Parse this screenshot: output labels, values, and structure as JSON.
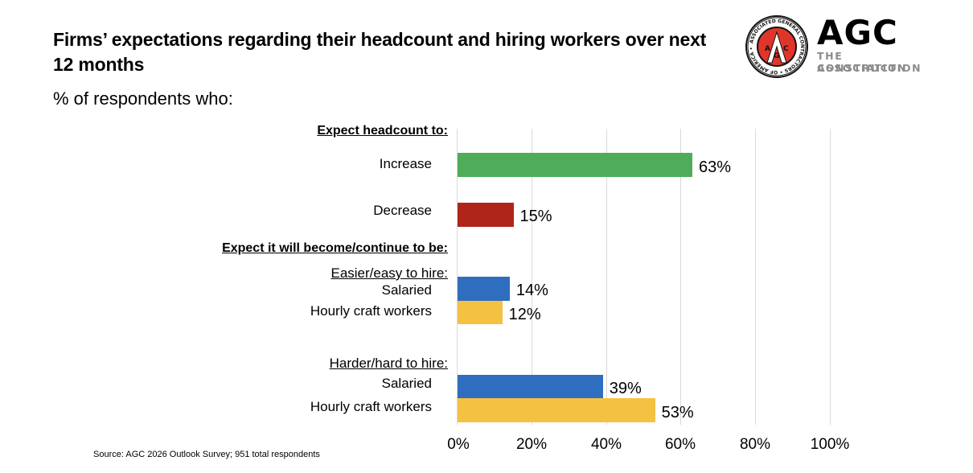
{
  "header": {
    "title": "Firms’ expectations regarding their headcount and hiring workers over next 12 months",
    "subtitle": "% of respondents who:"
  },
  "logo": {
    "seal_ring_text": "ASSOCIATED GENERAL CONTRACTORS OF AMERICA",
    "seal_letters": "AGC",
    "wordmark": "AGC",
    "tagline_line1": "THE CONSTRUCTION",
    "tagline_line2": "ASSOCIATION",
    "seal_color": "#e0352b"
  },
  "groups": {
    "headcount_header": "Expect headcount to:",
    "hiring_header": "Expect it will become/continue to be:",
    "easier_header": "Easier/easy to hire:",
    "harder_header": "Harder/hard to hire:"
  },
  "bars": [
    {
      "label": "Increase",
      "value": 63,
      "value_label": "63%",
      "color": "#4eac5b"
    },
    {
      "label": "Decrease",
      "value": 15,
      "value_label": "15%",
      "color": "#b0251a"
    },
    {
      "label": "Salaried",
      "value": 14,
      "value_label": "14%",
      "color": "#2f6ebf"
    },
    {
      "label": "Hourly craft workers",
      "value": 12,
      "value_label": "12%",
      "color": "#f5c142"
    },
    {
      "label": "Salaried",
      "value": 39,
      "value_label": "39%",
      "color": "#2f6ebf"
    },
    {
      "label": "Hourly craft workers",
      "value": 53,
      "value_label": "53%",
      "color": "#f5c142"
    }
  ],
  "axis": {
    "ticks": [
      "0%",
      "20%",
      "40%",
      "60%",
      "80%",
      "100%"
    ]
  },
  "footer": {
    "source": "Source: AGC 2026 Outlook Survey; 951 total respondents"
  },
  "chart_data": {
    "type": "bar",
    "orientation": "horizontal",
    "title": "Firms’ expectations regarding their headcount and hiring workers over next 12 months",
    "subtitle": "% of respondents who:",
    "groups": [
      {
        "name": "Expect headcount to:",
        "categories": [
          "Increase",
          "Decrease"
        ],
        "values": [
          63,
          15
        ]
      },
      {
        "name": "Expect it will become/continue to be: Easier/easy to hire:",
        "categories": [
          "Salaried",
          "Hourly craft workers"
        ],
        "values": [
          14,
          12
        ]
      },
      {
        "name": "Expect it will become/continue to be: Harder/hard to hire:",
        "categories": [
          "Salaried",
          "Hourly craft workers"
        ],
        "values": [
          39,
          53
        ]
      }
    ],
    "categories": [
      "Increase",
      "Decrease",
      "Easier: Salaried",
      "Easier: Hourly craft workers",
      "Harder: Salaried",
      "Harder: Hourly craft workers"
    ],
    "values": [
      63,
      15,
      14,
      12,
      39,
      53
    ],
    "xlabel": "",
    "ylabel": "",
    "xlim": [
      0,
      100
    ],
    "xticks": [
      "0%",
      "20%",
      "40%",
      "60%",
      "80%",
      "100%"
    ],
    "grid": "vertical",
    "data_labels": true,
    "colors": {
      "Increase": "#4eac5b",
      "Decrease": "#b0251a",
      "Salaried": "#2f6ebf",
      "Hourly craft workers": "#f5c142"
    },
    "source": "Source: AGC 2026 Outlook Survey; 951 total respondents"
  }
}
